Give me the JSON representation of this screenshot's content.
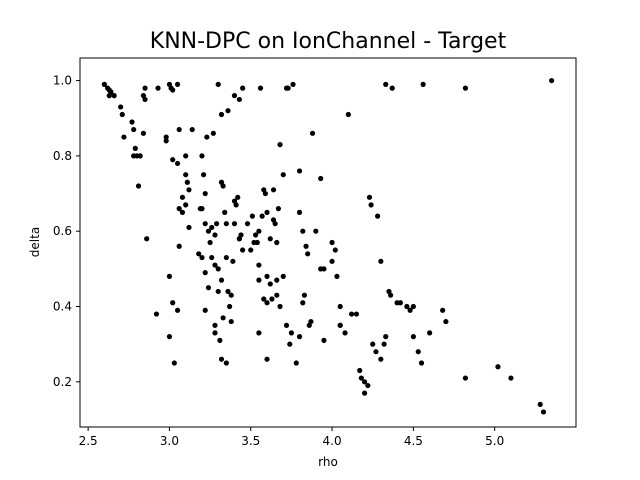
{
  "chart_data": {
    "type": "scatter",
    "title": "KNN-DPC on IonChannel - Target",
    "xlabel": "rho",
    "ylabel": "delta",
    "xlim": [
      2.45,
      5.5
    ],
    "ylim": [
      0.08,
      1.06
    ],
    "xticks": [
      2.5,
      3.0,
      3.5,
      4.0,
      4.5,
      5.0
    ],
    "xtick_labels": [
      "2.5",
      "3.0",
      "3.5",
      "4.0",
      "4.5",
      "5.0"
    ],
    "yticks": [
      0.2,
      0.4,
      0.6,
      0.8,
      1.0
    ],
    "ytick_labels": [
      "0.2",
      "0.4",
      "0.6",
      "0.8",
      "1.0"
    ],
    "grid": false,
    "legend": "none",
    "marker_color": "#000000",
    "points": [
      [
        2.6,
        0.99
      ],
      [
        2.62,
        0.98
      ],
      [
        2.63,
        0.975
      ],
      [
        2.64,
        0.97
      ],
      [
        2.63,
        0.96
      ],
      [
        2.66,
        0.96
      ],
      [
        2.7,
        0.93
      ],
      [
        2.71,
        0.91
      ],
      [
        2.72,
        0.85
      ],
      [
        2.77,
        0.89
      ],
      [
        2.78,
        0.87
      ],
      [
        2.78,
        0.8
      ],
      [
        2.79,
        0.82
      ],
      [
        2.8,
        0.8
      ],
      [
        2.81,
        0.72
      ],
      [
        2.82,
        0.8
      ],
      [
        2.84,
        0.96
      ],
      [
        2.85,
        0.95
      ],
      [
        2.85,
        0.98
      ],
      [
        2.84,
        0.86
      ],
      [
        2.86,
        0.58
      ],
      [
        2.93,
        0.98
      ],
      [
        2.92,
        0.38
      ],
      [
        3.0,
        0.99
      ],
      [
        3.01,
        0.98
      ],
      [
        3.02,
        0.975
      ],
      [
        3.05,
        0.99
      ],
      [
        2.98,
        0.85
      ],
      [
        3.02,
        0.79
      ],
      [
        3.05,
        0.78
      ],
      [
        3.06,
        0.87
      ],
      [
        3.1,
        0.75
      ],
      [
        3.1,
        0.8
      ],
      [
        3.11,
        0.73
      ],
      [
        3.08,
        0.69
      ],
      [
        3.1,
        0.67
      ],
      [
        3.06,
        0.66
      ],
      [
        3.08,
        0.65
      ],
      [
        3.12,
        0.71
      ],
      [
        3.14,
        0.87
      ],
      [
        3.0,
        0.48
      ],
      [
        3.0,
        0.32
      ],
      [
        3.02,
        0.41
      ],
      [
        3.03,
        0.25
      ],
      [
        3.05,
        0.39
      ],
      [
        3.06,
        0.56
      ],
      [
        3.2,
        0.8
      ],
      [
        3.21,
        0.75
      ],
      [
        3.22,
        0.7
      ],
      [
        3.2,
        0.66
      ],
      [
        3.23,
        0.85
      ],
      [
        3.27,
        0.86
      ],
      [
        3.22,
        0.62
      ],
      [
        3.24,
        0.6
      ],
      [
        3.25,
        0.57
      ],
      [
        3.26,
        0.61
      ],
      [
        3.28,
        0.59
      ],
      [
        3.2,
        0.53
      ],
      [
        3.22,
        0.49
      ],
      [
        3.24,
        0.45
      ],
      [
        3.26,
        0.53
      ],
      [
        3.28,
        0.51
      ],
      [
        3.29,
        0.62
      ],
      [
        3.3,
        0.5
      ],
      [
        3.3,
        0.44
      ],
      [
        3.32,
        0.47
      ],
      [
        3.31,
        0.31
      ],
      [
        3.28,
        0.33
      ],
      [
        3.32,
        0.26
      ],
      [
        3.22,
        0.39
      ],
      [
        3.33,
        0.37
      ],
      [
        3.3,
        0.99
      ],
      [
        3.32,
        0.91
      ],
      [
        3.36,
        0.92
      ],
      [
        3.32,
        0.73
      ],
      [
        3.33,
        0.72
      ],
      [
        3.34,
        0.65
      ],
      [
        3.35,
        0.62
      ],
      [
        3.35,
        0.53
      ],
      [
        3.36,
        0.44
      ],
      [
        3.37,
        0.4
      ],
      [
        3.38,
        0.36
      ],
      [
        3.38,
        0.43
      ],
      [
        3.39,
        0.52
      ],
      [
        3.4,
        0.62
      ],
      [
        3.4,
        0.68
      ],
      [
        3.41,
        0.67
      ],
      [
        3.42,
        0.69
      ],
      [
        3.43,
        0.58
      ],
      [
        3.44,
        0.59
      ],
      [
        3.4,
        0.96
      ],
      [
        3.43,
        0.95
      ],
      [
        3.45,
        0.98
      ],
      [
        3.5,
        0.55
      ],
      [
        3.51,
        0.64
      ],
      [
        3.52,
        0.57
      ],
      [
        3.54,
        0.57
      ],
      [
        3.55,
        0.6
      ],
      [
        3.53,
        0.59
      ],
      [
        3.55,
        0.51
      ],
      [
        3.55,
        0.47
      ],
      [
        3.56,
        0.98
      ],
      [
        3.58,
        0.42
      ],
      [
        3.58,
        0.71
      ],
      [
        3.59,
        0.7
      ],
      [
        3.6,
        0.65
      ],
      [
        3.6,
        0.48
      ],
      [
        3.62,
        0.46
      ],
      [
        3.62,
        0.58
      ],
      [
        3.63,
        0.42
      ],
      [
        3.64,
        0.71
      ],
      [
        3.64,
        0.63
      ],
      [
        3.65,
        0.62
      ],
      [
        3.66,
        0.43
      ],
      [
        3.66,
        0.47
      ],
      [
        3.67,
        0.66
      ],
      [
        3.68,
        0.83
      ],
      [
        3.7,
        0.48
      ],
      [
        3.7,
        0.75
      ],
      [
        3.72,
        0.98
      ],
      [
        3.73,
        0.98
      ],
      [
        3.72,
        0.35
      ],
      [
        3.75,
        0.33
      ],
      [
        3.6,
        0.26
      ],
      [
        3.55,
        0.33
      ],
      [
        3.78,
        0.25
      ],
      [
        3.8,
        0.32
      ],
      [
        3.8,
        0.76
      ],
      [
        3.8,
        0.65
      ],
      [
        3.82,
        0.6
      ],
      [
        3.82,
        0.41
      ],
      [
        3.83,
        0.43
      ],
      [
        3.84,
        0.56
      ],
      [
        3.85,
        0.54
      ],
      [
        3.86,
        0.35
      ],
      [
        3.87,
        0.36
      ],
      [
        3.88,
        0.86
      ],
      [
        3.9,
        0.6
      ],
      [
        3.93,
        0.74
      ],
      [
        3.95,
        0.31
      ],
      [
        3.95,
        0.5
      ],
      [
        4.0,
        0.57
      ],
      [
        4.0,
        0.52
      ],
      [
        4.02,
        0.55
      ],
      [
        4.03,
        0.48
      ],
      [
        4.05,
        0.35
      ],
      [
        4.05,
        0.4
      ],
      [
        4.1,
        0.91
      ],
      [
        4.12,
        0.38
      ],
      [
        4.15,
        0.38
      ],
      [
        4.17,
        0.23
      ],
      [
        4.18,
        0.21
      ],
      [
        4.2,
        0.2
      ],
      [
        4.2,
        0.17
      ],
      [
        4.22,
        0.19
      ],
      [
        4.23,
        0.69
      ],
      [
        4.24,
        0.67
      ],
      [
        4.25,
        0.3
      ],
      [
        4.27,
        0.28
      ],
      [
        4.28,
        0.64
      ],
      [
        4.3,
        0.52
      ],
      [
        4.3,
        0.26
      ],
      [
        4.32,
        0.3
      ],
      [
        4.33,
        0.32
      ],
      [
        4.35,
        0.44
      ],
      [
        4.36,
        0.43
      ],
      [
        4.37,
        0.98
      ],
      [
        4.4,
        0.41
      ],
      [
        4.42,
        0.41
      ],
      [
        4.46,
        0.4
      ],
      [
        4.48,
        0.39
      ],
      [
        4.5,
        0.4
      ],
      [
        4.5,
        0.32
      ],
      [
        4.53,
        0.28
      ],
      [
        4.55,
        0.25
      ],
      [
        4.56,
        0.99
      ],
      [
        4.6,
        0.33
      ],
      [
        4.68,
        0.39
      ],
      [
        4.7,
        0.36
      ],
      [
        4.82,
        0.98
      ],
      [
        4.82,
        0.21
      ],
      [
        4.33,
        0.99
      ],
      [
        5.02,
        0.24
      ],
      [
        5.1,
        0.21
      ],
      [
        5.28,
        0.14
      ],
      [
        5.3,
        0.12
      ],
      [
        5.35,
        1.0
      ],
      [
        2.98,
        0.84
      ],
      [
        3.19,
        0.66
      ],
      [
        3.43,
        0.58
      ],
      [
        3.35,
        0.25
      ],
      [
        3.66,
        0.57
      ],
      [
        3.76,
        0.99
      ],
      [
        3.57,
        0.64
      ],
      [
        3.45,
        0.55
      ],
      [
        3.12,
        0.61
      ],
      [
        3.18,
        0.54
      ],
      [
        3.48,
        0.62
      ],
      [
        3.6,
        0.41
      ],
      [
        3.28,
        0.35
      ],
      [
        3.93,
        0.5
      ],
      [
        4.08,
        0.33
      ],
      [
        3.74,
        0.3
      ],
      [
        4.05,
        0.35
      ],
      [
        3.68,
        0.4
      ]
    ]
  }
}
